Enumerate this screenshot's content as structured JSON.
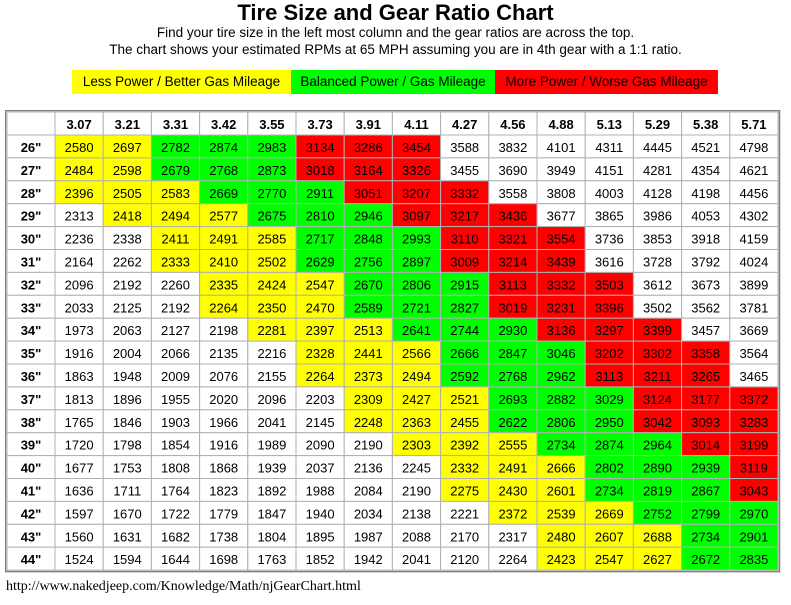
{
  "title": "Tire Size and Gear Ratio Chart",
  "subtitle_lines": [
    "Find your tire size in the left most column and the gear ratios are across the top.",
    "The chart shows your estimated RPMs at 65 MPH assuming you are in 4th gear with a 1:1 ratio."
  ],
  "legend": {
    "yellow_label": "Less Power / Better Gas Mileage",
    "green_label": "Balanced Power / Gas Mileage",
    "red_label": "More Power / Worse Gas Mileage"
  },
  "colors": {
    "yellow": "#ffff00",
    "green": "#00ff00",
    "red": "#ff0000",
    "white": "#ffffff",
    "border": "#b0b0b0"
  },
  "source_url": "http://www.nakedjeep.com/Knowledge/Math/njGearChart.html",
  "chart_data": {
    "type": "table",
    "columns": [
      "3.07",
      "3.21",
      "3.31",
      "3.42",
      "3.55",
      "3.73",
      "3.91",
      "4.11",
      "4.27",
      "4.56",
      "4.88",
      "5.13",
      "5.29",
      "5.38",
      "5.71"
    ],
    "row_labels": [
      "26\"",
      "27\"",
      "28\"",
      "29\"",
      "30\"",
      "31\"",
      "32\"",
      "33\"",
      "34\"",
      "35\"",
      "36\"",
      "37\"",
      "38\"",
      "39\"",
      "40\"",
      "41\"",
      "42\"",
      "43\"",
      "44\""
    ],
    "values": [
      [
        2580,
        2697,
        2782,
        2874,
        2983,
        3134,
        3286,
        3454,
        3588,
        3832,
        4101,
        4311,
        4445,
        4521,
        4798
      ],
      [
        2484,
        2598,
        2679,
        2768,
        2873,
        3018,
        3164,
        3326,
        3455,
        3690,
        3949,
        4151,
        4281,
        4354,
        4621
      ],
      [
        2396,
        2505,
        2583,
        2669,
        2770,
        2911,
        3051,
        3207,
        3332,
        3558,
        3808,
        4003,
        4128,
        4198,
        4456
      ],
      [
        2313,
        2418,
        2494,
        2577,
        2675,
        2810,
        2946,
        3097,
        3217,
        3436,
        3677,
        3865,
        3986,
        4053,
        4302
      ],
      [
        2236,
        2338,
        2411,
        2491,
        2585,
        2717,
        2848,
        2993,
        3110,
        3321,
        3554,
        3736,
        3853,
        3918,
        4159
      ],
      [
        2164,
        2262,
        2333,
        2410,
        2502,
        2629,
        2756,
        2897,
        3009,
        3214,
        3439,
        3616,
        3728,
        3792,
        4024
      ],
      [
        2096,
        2192,
        2260,
        2335,
        2424,
        2547,
        2670,
        2806,
        2915,
        3113,
        3332,
        3503,
        3612,
        3673,
        3899
      ],
      [
        2033,
        2125,
        2192,
        2264,
        2350,
        2470,
        2589,
        2721,
        2827,
        3019,
        3231,
        3396,
        3502,
        3562,
        3781
      ],
      [
        1973,
        2063,
        2127,
        2198,
        2281,
        2397,
        2513,
        2641,
        2744,
        2930,
        3136,
        3297,
        3399,
        3457,
        3669
      ],
      [
        1916,
        2004,
        2066,
        2135,
        2216,
        2328,
        2441,
        2566,
        2666,
        2847,
        3046,
        3202,
        3302,
        3358,
        3564
      ],
      [
        1863,
        1948,
        2009,
        2076,
        2155,
        2264,
        2373,
        2494,
        2592,
        2768,
        2962,
        3113,
        3211,
        3265,
        3465
      ],
      [
        1813,
        1896,
        1955,
        2020,
        2096,
        2203,
        2309,
        2427,
        2521,
        2693,
        2882,
        3029,
        3124,
        3177,
        3372
      ],
      [
        1765,
        1846,
        1903,
        1966,
        2041,
        2145,
        2248,
        2363,
        2455,
        2622,
        2806,
        2950,
        3042,
        3093,
        3283
      ],
      [
        1720,
        1798,
        1854,
        1916,
        1989,
        2090,
        2190,
        2303,
        2392,
        2555,
        2734,
        2874,
        2964,
        3014,
        3199
      ],
      [
        1677,
        1753,
        1808,
        1868,
        1939,
        2037,
        2136,
        2245,
        2332,
        2491,
        2666,
        2802,
        2890,
        2939,
        3119
      ],
      [
        1636,
        1711,
        1764,
        1823,
        1892,
        1988,
        2084,
        2190,
        2275,
        2430,
        2601,
        2734,
        2819,
        2867,
        3043
      ],
      [
        1597,
        1670,
        1722,
        1779,
        1847,
        1940,
        2034,
        2138,
        2221,
        2372,
        2539,
        2669,
        2752,
        2799,
        2970
      ],
      [
        1560,
        1631,
        1682,
        1738,
        1804,
        1895,
        1987,
        2088,
        2170,
        2317,
        2480,
        2607,
        2688,
        2734,
        2901
      ],
      [
        1524,
        1594,
        1644,
        1698,
        1763,
        1852,
        1942,
        2041,
        2120,
        2264,
        2423,
        2547,
        2627,
        2672,
        2835
      ]
    ],
    "cell_colors": [
      [
        "y",
        "y",
        "g",
        "g",
        "g",
        "r",
        "r",
        "r",
        "w",
        "w",
        "w",
        "w",
        "w",
        "w",
        "w"
      ],
      [
        "y",
        "y",
        "g",
        "g",
        "g",
        "r",
        "r",
        "r",
        "w",
        "w",
        "w",
        "w",
        "w",
        "w",
        "w"
      ],
      [
        "y",
        "y",
        "y",
        "g",
        "g",
        "g",
        "r",
        "r",
        "r",
        "w",
        "w",
        "w",
        "w",
        "w",
        "w"
      ],
      [
        "w",
        "y",
        "y",
        "y",
        "g",
        "g",
        "g",
        "r",
        "r",
        "r",
        "w",
        "w",
        "w",
        "w",
        "w"
      ],
      [
        "w",
        "w",
        "y",
        "y",
        "y",
        "g",
        "g",
        "g",
        "r",
        "r",
        "r",
        "w",
        "w",
        "w",
        "w"
      ],
      [
        "w",
        "w",
        "y",
        "y",
        "y",
        "g",
        "g",
        "g",
        "r",
        "r",
        "r",
        "w",
        "w",
        "w",
        "w"
      ],
      [
        "w",
        "w",
        "w",
        "y",
        "y",
        "y",
        "g",
        "g",
        "g",
        "r",
        "r",
        "r",
        "w",
        "w",
        "w"
      ],
      [
        "w",
        "w",
        "w",
        "y",
        "y",
        "y",
        "g",
        "g",
        "g",
        "r",
        "r",
        "r",
        "w",
        "w",
        "w"
      ],
      [
        "w",
        "w",
        "w",
        "w",
        "y",
        "y",
        "y",
        "g",
        "g",
        "g",
        "r",
        "r",
        "r",
        "w",
        "w"
      ],
      [
        "w",
        "w",
        "w",
        "w",
        "w",
        "y",
        "y",
        "y",
        "g",
        "g",
        "g",
        "r",
        "r",
        "r",
        "w"
      ],
      [
        "w",
        "w",
        "w",
        "w",
        "w",
        "y",
        "y",
        "y",
        "g",
        "g",
        "g",
        "r",
        "r",
        "r",
        "w"
      ],
      [
        "w",
        "w",
        "w",
        "w",
        "w",
        "w",
        "y",
        "y",
        "y",
        "g",
        "g",
        "g",
        "r",
        "r",
        "r"
      ],
      [
        "w",
        "w",
        "w",
        "w",
        "w",
        "w",
        "y",
        "y",
        "y",
        "g",
        "g",
        "g",
        "r",
        "r",
        "r"
      ],
      [
        "w",
        "w",
        "w",
        "w",
        "w",
        "w",
        "w",
        "y",
        "y",
        "y",
        "g",
        "g",
        "g",
        "r",
        "r"
      ],
      [
        "w",
        "w",
        "w",
        "w",
        "w",
        "w",
        "w",
        "w",
        "y",
        "y",
        "y",
        "g",
        "g",
        "g",
        "r"
      ],
      [
        "w",
        "w",
        "w",
        "w",
        "w",
        "w",
        "w",
        "w",
        "y",
        "y",
        "y",
        "g",
        "g",
        "g",
        "r"
      ],
      [
        "w",
        "w",
        "w",
        "w",
        "w",
        "w",
        "w",
        "w",
        "w",
        "y",
        "y",
        "y",
        "g",
        "g",
        "g"
      ],
      [
        "w",
        "w",
        "w",
        "w",
        "w",
        "w",
        "w",
        "w",
        "w",
        "w",
        "y",
        "y",
        "y",
        "g",
        "g"
      ],
      [
        "w",
        "w",
        "w",
        "w",
        "w",
        "w",
        "w",
        "w",
        "w",
        "w",
        "y",
        "y",
        "y",
        "g",
        "g"
      ]
    ]
  }
}
